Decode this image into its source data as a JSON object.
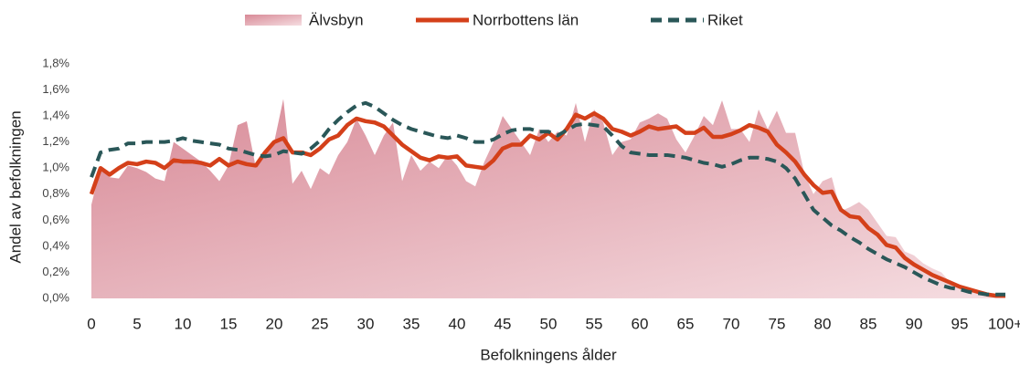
{
  "chart_data": {
    "type": "line",
    "xlabel": "Befolkningens ålder",
    "ylabel": "Andel av befolkningen",
    "categories": [
      "0",
      null,
      null,
      null,
      null,
      "5",
      null,
      null,
      null,
      null,
      "10",
      null,
      null,
      null,
      null,
      "15",
      null,
      null,
      null,
      null,
      "20",
      null,
      null,
      null,
      null,
      "25",
      null,
      null,
      null,
      null,
      "30",
      null,
      null,
      null,
      null,
      "35",
      null,
      null,
      null,
      null,
      "40",
      null,
      null,
      null,
      null,
      "45",
      null,
      null,
      null,
      null,
      "50",
      null,
      null,
      null,
      null,
      "55",
      null,
      null,
      null,
      null,
      "60",
      null,
      null,
      null,
      null,
      "65",
      null,
      null,
      null,
      null,
      "70",
      null,
      null,
      null,
      null,
      "75",
      null,
      null,
      null,
      null,
      "80",
      null,
      null,
      null,
      null,
      "85",
      null,
      null,
      null,
      null,
      "90",
      null,
      null,
      null,
      null,
      "95",
      null,
      null,
      null,
      null,
      "100+"
    ],
    "ylim": [
      0,
      1.8
    ],
    "yticks": [
      {
        "value": 0,
        "label": "0,0%"
      },
      {
        "value": 0.2,
        "label": "0,2%"
      },
      {
        "value": 0.4,
        "label": "0,4%"
      },
      {
        "value": 0.6,
        "label": "0,6%"
      },
      {
        "value": 0.8,
        "label": "0,8%"
      },
      {
        "value": 1.0,
        "label": "1,0%"
      },
      {
        "value": 1.2,
        "label": "1,2%"
      },
      {
        "value": 1.4,
        "label": "1,4%"
      },
      {
        "value": 1.6,
        "label": "1,6%"
      },
      {
        "value": 1.8,
        "label": "1,8%"
      }
    ],
    "legend": "top",
    "series": [
      {
        "name": "Älvsbyn",
        "type": "area",
        "color": "#dc95a0",
        "values": [
          0.72,
          1.0,
          0.93,
          0.92,
          1.02,
          1.0,
          0.97,
          0.92,
          0.9,
          1.2,
          1.15,
          1.1,
          1.05,
          0.98,
          0.9,
          1.02,
          1.33,
          1.36,
          1.0,
          1.1,
          1.2,
          1.53,
          0.88,
          0.98,
          0.84,
          1.0,
          0.95,
          1.1,
          1.2,
          1.38,
          1.25,
          1.1,
          1.25,
          1.35,
          0.9,
          1.1,
          0.98,
          1.05,
          1.0,
          1.1,
          1.02,
          0.9,
          0.86,
          1.05,
          1.2,
          1.4,
          1.3,
          1.2,
          1.1,
          1.3,
          1.2,
          1.28,
          1.25,
          1.5,
          1.2,
          1.45,
          1.35,
          1.1,
          1.2,
          1.22,
          1.35,
          1.38,
          1.42,
          1.38,
          1.22,
          1.12,
          1.25,
          1.4,
          1.33,
          1.52,
          1.3,
          1.3,
          1.2,
          1.45,
          1.3,
          1.44,
          1.27,
          1.27,
          0.96,
          0.8,
          0.9,
          0.93,
          0.67,
          0.7,
          0.74,
          0.68,
          0.58,
          0.48,
          0.47,
          0.36,
          0.33,
          0.27,
          0.23,
          0.2,
          0.12,
          0.08,
          0.07,
          0.04,
          0.03,
          0.02,
          0.02
        ]
      },
      {
        "name": "Norrbottens län",
        "type": "line",
        "color": "#d4401a",
        "values": [
          0.8,
          1.0,
          0.95,
          1.0,
          1.04,
          1.03,
          1.05,
          1.04,
          1.0,
          1.06,
          1.05,
          1.05,
          1.04,
          1.02,
          1.07,
          1.02,
          1.05,
          1.03,
          1.02,
          1.12,
          1.2,
          1.23,
          1.12,
          1.12,
          1.1,
          1.15,
          1.22,
          1.25,
          1.33,
          1.38,
          1.36,
          1.35,
          1.32,
          1.25,
          1.18,
          1.13,
          1.08,
          1.06,
          1.09,
          1.08,
          1.09,
          1.02,
          1.01,
          1.0,
          1.06,
          1.15,
          1.18,
          1.18,
          1.25,
          1.22,
          1.27,
          1.22,
          1.3,
          1.41,
          1.38,
          1.42,
          1.38,
          1.3,
          1.28,
          1.25,
          1.28,
          1.32,
          1.3,
          1.31,
          1.32,
          1.27,
          1.27,
          1.31,
          1.24,
          1.24,
          1.26,
          1.29,
          1.33,
          1.31,
          1.28,
          1.18,
          1.12,
          1.05,
          0.95,
          0.87,
          0.81,
          0.82,
          0.68,
          0.63,
          0.62,
          0.54,
          0.49,
          0.41,
          0.39,
          0.31,
          0.26,
          0.22,
          0.18,
          0.15,
          0.12,
          0.09,
          0.07,
          0.05,
          0.03,
          0.02,
          0.02
        ]
      },
      {
        "name": "Riket",
        "type": "dashed",
        "color": "#2a5758",
        "values": [
          0.93,
          1.12,
          1.14,
          1.15,
          1.19,
          1.19,
          1.2,
          1.2,
          1.2,
          1.21,
          1.23,
          1.21,
          1.2,
          1.19,
          1.18,
          1.15,
          1.14,
          1.12,
          1.1,
          1.09,
          1.1,
          1.13,
          1.12,
          1.11,
          1.15,
          1.21,
          1.3,
          1.37,
          1.43,
          1.48,
          1.5,
          1.47,
          1.42,
          1.37,
          1.33,
          1.3,
          1.28,
          1.26,
          1.24,
          1.23,
          1.25,
          1.23,
          1.2,
          1.2,
          1.22,
          1.26,
          1.29,
          1.3,
          1.3,
          1.28,
          1.28,
          1.25,
          1.29,
          1.33,
          1.34,
          1.33,
          1.32,
          1.25,
          1.17,
          1.12,
          1.11,
          1.1,
          1.1,
          1.1,
          1.09,
          1.08,
          1.06,
          1.04,
          1.03,
          1.01,
          1.03,
          1.06,
          1.08,
          1.08,
          1.07,
          1.05,
          1.0,
          0.92,
          0.8,
          0.68,
          0.62,
          0.56,
          0.52,
          0.47,
          0.43,
          0.38,
          0.34,
          0.3,
          0.27,
          0.24,
          0.2,
          0.16,
          0.13,
          0.1,
          0.08,
          0.07,
          0.05,
          0.04,
          0.03,
          0.03,
          0.03
        ]
      }
    ]
  }
}
